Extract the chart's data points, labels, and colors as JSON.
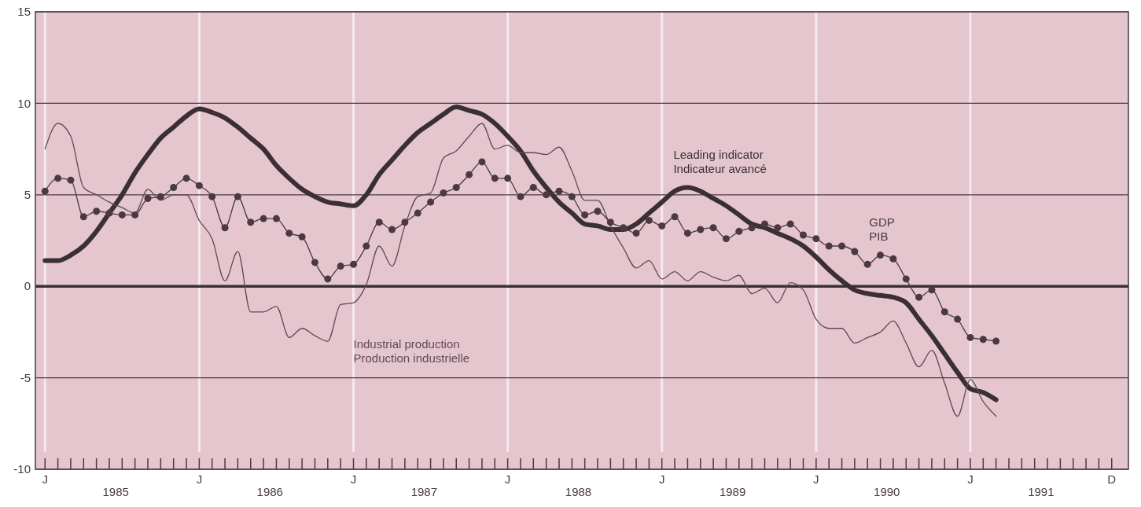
{
  "chart_data": {
    "type": "line",
    "categories": [
      "J",
      null,
      null,
      null,
      null,
      null,
      null,
      null,
      null,
      null,
      null,
      null,
      "J",
      null,
      null,
      null,
      null,
      null,
      null,
      null,
      null,
      null,
      null,
      null,
      "J",
      null,
      null,
      null,
      null,
      null,
      null,
      null,
      null,
      null,
      null,
      null,
      "J",
      null,
      null,
      null,
      null,
      null,
      null,
      null,
      null,
      null,
      null,
      null,
      "J",
      null,
      null,
      null,
      null,
      null,
      null,
      null,
      null,
      null,
      null,
      null,
      "J",
      null,
      null,
      null,
      null,
      null,
      null,
      null,
      null,
      null,
      null,
      null,
      "J",
      null,
      null,
      null,
      null,
      null,
      null,
      null,
      null,
      null,
      null,
      "D"
    ],
    "series": [
      {
        "name": "Leading indicator\nIndicateur avancé",
        "color": "#3a2f33",
        "marker": "none",
        "values": [
          1.4,
          1.4,
          1.7,
          2.2,
          3.0,
          4.0,
          5.0,
          6.2,
          7.2,
          8.1,
          8.7,
          9.3,
          9.7,
          9.5,
          9.2,
          8.7,
          8.1,
          7.5,
          6.6,
          5.9,
          5.3,
          4.9,
          4.6,
          4.5,
          4.4,
          5.0,
          6.1,
          6.9,
          7.7,
          8.4,
          8.9,
          9.4,
          9.8,
          9.6,
          9.4,
          8.9,
          8.2,
          7.4,
          6.3,
          5.4,
          4.6,
          4.0,
          3.4,
          3.3,
          3.1,
          3.1,
          3.4,
          4.0,
          4.6,
          5.2,
          5.4,
          5.2,
          4.8,
          4.4,
          3.9,
          3.4,
          3.2,
          2.9,
          2.6,
          2.2,
          1.6,
          0.9,
          0.3,
          -0.2,
          -0.4,
          -0.5,
          -0.6,
          -0.9,
          -1.8,
          -2.7,
          -3.7,
          -4.7,
          -5.6,
          -5.8,
          -6.2,
          null,
          null,
          null,
          null,
          null,
          null,
          null,
          null,
          null
        ]
      },
      {
        "name": "Industrial production\nProduction industrielle",
        "color": "#5e4b52",
        "marker": "none",
        "values": [
          7.5,
          8.9,
          8.2,
          5.4,
          5.0,
          4.6,
          4.3,
          4.0,
          5.3,
          4.7,
          5.0,
          5.0,
          3.6,
          2.6,
          0.3,
          1.9,
          -1.4,
          -1.4,
          -1.1,
          -2.8,
          -2.3,
          -2.7,
          -3.0,
          -1.0,
          -0.9,
          0.1,
          2.2,
          1.1,
          3.3,
          4.9,
          5.1,
          7.0,
          7.4,
          8.2,
          8.9,
          7.5,
          7.7,
          7.3,
          7.3,
          7.2,
          7.6,
          6.3,
          4.7,
          4.7,
          3.3,
          2.1,
          1.0,
          1.4,
          0.4,
          0.8,
          0.3,
          0.8,
          0.5,
          0.3,
          0.6,
          -0.4,
          -0.1,
          -0.9,
          0.2,
          -0.2,
          -1.8,
          -2.3,
          -2.3,
          -3.1,
          -2.8,
          -2.5,
          -1.9,
          -3.1,
          -4.4,
          -3.5,
          -5.3,
          -7.1,
          -5.1,
          -6.3,
          -7.1,
          null,
          null,
          null,
          null,
          null,
          null,
          null,
          null,
          null
        ]
      },
      {
        "name": "GDP\nPIB",
        "color": "#4a3a40",
        "marker": "circle",
        "values": [
          5.2,
          5.9,
          5.8,
          3.8,
          4.1,
          4.0,
          3.9,
          3.9,
          4.8,
          4.9,
          5.4,
          5.9,
          5.5,
          4.9,
          3.2,
          4.9,
          3.5,
          3.7,
          3.7,
          2.9,
          2.7,
          1.3,
          0.4,
          1.1,
          1.2,
          2.2,
          3.5,
          3.1,
          3.5,
          4.0,
          4.6,
          5.1,
          5.4,
          6.1,
          6.8,
          5.9,
          5.9,
          4.9,
          5.4,
          5.0,
          5.2,
          4.9,
          3.9,
          4.1,
          3.5,
          3.2,
          2.9,
          3.6,
          3.3,
          3.8,
          2.9,
          3.1,
          3.2,
          2.6,
          3.0,
          3.2,
          3.4,
          3.2,
          3.4,
          2.8,
          2.6,
          2.2,
          2.2,
          1.9,
          1.2,
          1.7,
          1.5,
          0.4,
          -0.6,
          -0.2,
          -1.4,
          -1.8,
          -2.8,
          -2.9,
          -3.0,
          null,
          null,
          null,
          null,
          null,
          null,
          null,
          null,
          null
        ]
      }
    ],
    "annotations": [
      "1985",
      "1986",
      "1987",
      "1988",
      "1989",
      "1990",
      "1991"
    ],
    "ylim": [
      -10,
      15
    ],
    "yticks": [
      -10,
      -5,
      0,
      5,
      10,
      15
    ],
    "grid": true,
    "line_style": "solid",
    "ref_lines": [
      {
        "axis": "y",
        "value": 0,
        "color": "#3a2f33"
      }
    ]
  }
}
